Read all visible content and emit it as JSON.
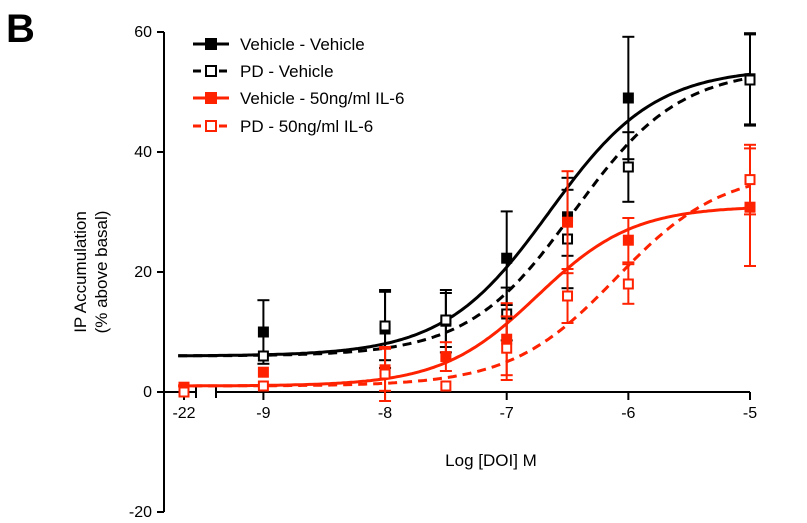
{
  "panel_label": "B",
  "chart_data": {
    "type": "scatter",
    "xlabel": "Log [DOI] M",
    "ylabel_line1": "IP Accumulation",
    "ylabel_line2": "(% above basal)",
    "ylim": [
      -20,
      60
    ],
    "y_ticks": [
      -20,
      0,
      20,
      40,
      60
    ],
    "x_ticks": [
      -22,
      -9,
      -8,
      -7,
      -6,
      -5
    ],
    "x_axis_break": {
      "low_value": -22,
      "resumes_at": -9.55
    },
    "xlim": [
      -9.85,
      -5
    ],
    "grid": false,
    "legend_position": "top-left",
    "series": [
      {
        "name": "Vehicle - Vehicle",
        "color": "#000000",
        "marker": "filled-square",
        "line": "solid",
        "x": [
          -22,
          -9,
          -8,
          -7.5,
          -7,
          -6.5,
          -6,
          -5
        ],
        "y": [
          0,
          10,
          10.5,
          11.8,
          22.3,
          29.2,
          49,
          52.2
        ],
        "err": [
          0,
          5.3,
          6.5,
          5.2,
          7.8,
          6.5,
          10.2,
          7.6
        ],
        "fit": {
          "bottom": 6,
          "top": 54,
          "logEC50": -6.65,
          "hill": 1
        }
      },
      {
        "name": "PD - Vehicle",
        "color": "#000000",
        "marker": "open-square",
        "line": "dashed",
        "x": [
          -9,
          -8,
          -7.5,
          -7,
          -6.5,
          -6,
          -5
        ],
        "y": [
          6,
          11,
          12,
          13,
          25.5,
          37.5,
          52
        ],
        "err": [
          0,
          5.7,
          4.5,
          4.4,
          8.2,
          5.8,
          7.6
        ],
        "fit": {
          "bottom": 6,
          "top": 54,
          "logEC50": -6.45,
          "hill": 1
        }
      },
      {
        "name": "Vehicle - 50ng/ml IL-6",
        "color": "#ff2200",
        "marker": "filled-square",
        "line": "solid",
        "x": [
          -22,
          -9,
          -8,
          -7.5,
          -7,
          -6.5,
          -6,
          -5
        ],
        "y": [
          0.8,
          3.3,
          3.7,
          5.9,
          8.8,
          28.3,
          25.3,
          30.8
        ],
        "err": [
          0,
          0,
          3.5,
          2.4,
          6,
          8.5,
          3.7,
          9.8
        ],
        "fit": {
          "bottom": 1,
          "top": 31,
          "logEC50": -6.75,
          "hill": 1.1
        }
      },
      {
        "name": "PD - 50ng/ml IL-6",
        "color": "#ff2200",
        "marker": "open-square",
        "line": "dashed",
        "x": [
          -22,
          -9,
          -8,
          -7.5,
          -7,
          -6.5,
          -6,
          -5
        ],
        "y": [
          0,
          1,
          3,
          1,
          7.3,
          16,
          18,
          35.4
        ],
        "err": [
          0,
          0,
          4.5,
          0,
          5.3,
          4.5,
          3.3,
          5.8
        ],
        "fit": {
          "bottom": 1,
          "top": 37,
          "logEC50": -6.1,
          "hill": 1
        }
      }
    ]
  }
}
